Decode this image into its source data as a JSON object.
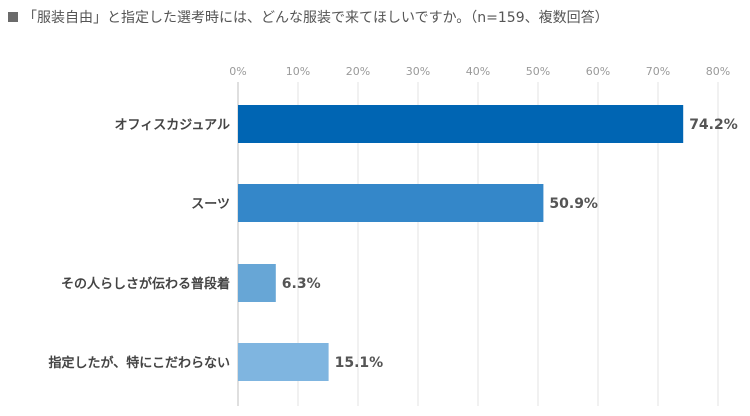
{
  "title": "「服装自由」と指定した選考時には、どんな服装で来てほしいですか。（n=159、複数回答）",
  "chart_data": {
    "type": "bar",
    "orientation": "horizontal",
    "categories": [
      "オフィスカジュアル",
      "スーツ",
      "その人らしさが伝わる普段着",
      "指定したが、特にこだわらない"
    ],
    "values": [
      74.2,
      50.9,
      6.3,
      15.1
    ],
    "value_labels": [
      "74.2%",
      "50.9%",
      "6.3%",
      "15.1%"
    ],
    "xlim": [
      0,
      80
    ],
    "xticks": [
      "0%",
      "10%",
      "20%",
      "30%",
      "40%",
      "50%",
      "60%",
      "70%",
      "80%"
    ],
    "xaxis_position": "top",
    "grid": true,
    "bar_colors": [
      "#0065b3",
      "#3487c9",
      "#67a6d6",
      "#7fb5e0"
    ]
  }
}
